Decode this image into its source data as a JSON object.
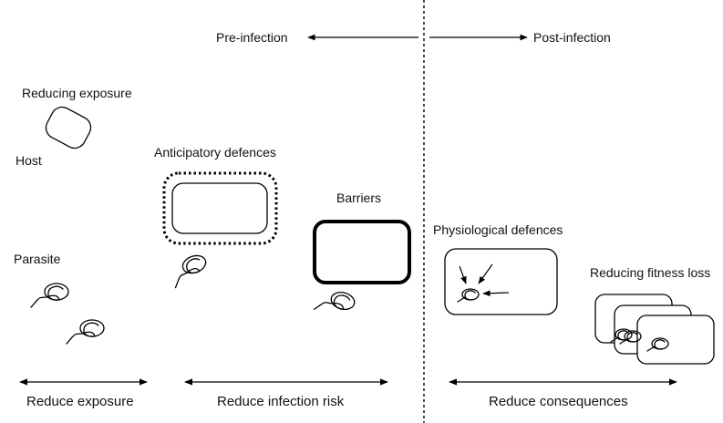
{
  "header": {
    "pre_infection": "Pre-infection",
    "post_infection": "Post-infection"
  },
  "labels": {
    "reducing_exposure": "Reducing exposure",
    "host": "Host",
    "parasite": "Parasite",
    "anticipatory_defences": "Anticipatory defences",
    "barriers": "Barriers",
    "physiological_defences": "Physiological defences",
    "reducing_fitness_loss": "Reducing fitness loss"
  },
  "footer": {
    "reduce_exposure": "Reduce exposure",
    "reduce_infection_risk": "Reduce infection risk",
    "reduce_consequences": "Reduce consequences"
  }
}
